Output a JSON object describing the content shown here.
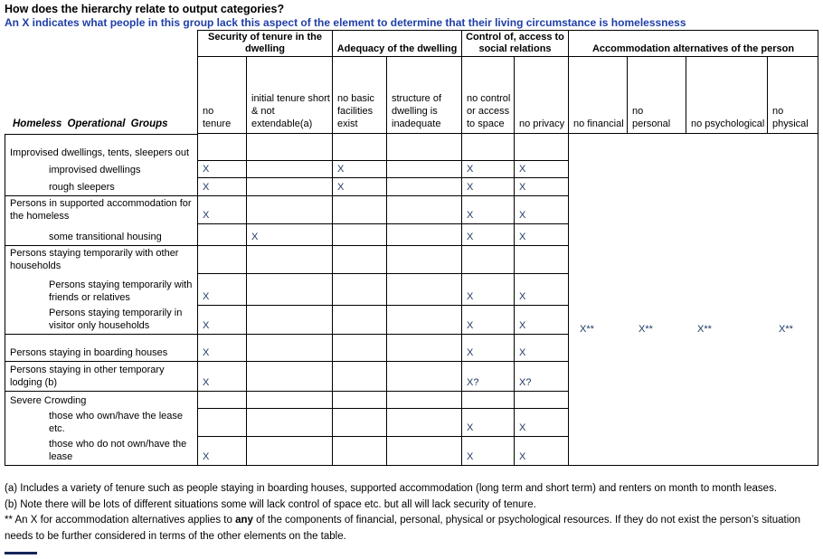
{
  "title": "How does the hierarchy relate to output categories?",
  "subtitle": "An X indicates what people in this group lack this aspect of the element to determine that their living circumstance is homelessness",
  "table": {
    "row_header_title": "Homeless Operational Groups",
    "groups": [
      {
        "label": "Security of tenure in the dwelling"
      },
      {
        "label": "Adequacy of the dwelling"
      },
      {
        "label": "Control of, access to social relations"
      },
      {
        "label": "Accommodation alternatives of the person"
      }
    ],
    "columns": [
      "no tenure",
      "initial tenure short & not extendable(a)",
      "no basic facilities exist",
      "structure of dwelling is inadequate",
      "no control or access to space",
      "no privacy",
      "no financial",
      "no personal",
      "no psychological",
      "no physical"
    ],
    "rows": [
      {
        "label": "Improvised dwellings, tents, sleepers out",
        "indent": false,
        "marks": [
          "",
          "",
          "",
          "",
          "",
          ""
        ],
        "section_end": false
      },
      {
        "label": "improvised dwellings",
        "indent": true,
        "marks": [
          "X",
          "",
          "X",
          "",
          "X",
          "X"
        ],
        "section_end": false
      },
      {
        "label": "rough sleepers",
        "indent": true,
        "marks": [
          "X",
          "",
          "X",
          "",
          "X",
          "X"
        ],
        "section_end": true
      },
      {
        "label": "Persons in supported accommodation for the homeless",
        "indent": false,
        "marks": [
          "X",
          "",
          "",
          "",
          "X",
          "X"
        ],
        "section_end": false
      },
      {
        "label": "some transitional housing",
        "indent": true,
        "marks": [
          "",
          "X",
          "",
          "",
          "X",
          "X"
        ],
        "section_end": true
      },
      {
        "label": "Persons staying temporarily with other households",
        "indent": false,
        "marks": [
          "",
          "",
          "",
          "",
          "",
          ""
        ],
        "section_end": false
      },
      {
        "label": "Persons staying temporarily with friends or relatives",
        "indent": true,
        "marks": [
          "X",
          "",
          "",
          "",
          "X",
          "X"
        ],
        "section_end": false
      },
      {
        "label": "Persons staying temporarily in visitor only households",
        "indent": true,
        "marks": [
          "X",
          "",
          "",
          "",
          "X",
          "X"
        ],
        "accommodation": [
          "X**",
          "X**",
          "X**",
          "X**"
        ],
        "section_end": true
      },
      {
        "label": "Persons staying in boarding houses",
        "indent": false,
        "marks": [
          "X",
          "",
          "",
          "",
          "X",
          "X"
        ],
        "section_end": true
      },
      {
        "label": "Persons staying in other temporary lodging (b)",
        "indent": false,
        "marks": [
          "X",
          "",
          "",
          "",
          "X?",
          "X?"
        ],
        "section_end": true
      },
      {
        "label": "Severe Crowding",
        "indent": false,
        "marks": [
          "",
          "",
          "",
          "",
          "",
          ""
        ],
        "section_end": false
      },
      {
        "label": "those who own/have the lease etc.",
        "indent": true,
        "marks": [
          "",
          "",
          "",
          "",
          "X",
          "X"
        ],
        "section_end": false
      },
      {
        "label": "those who do not own/have the lease",
        "indent": true,
        "marks": [
          "X",
          "",
          "",
          "",
          "X",
          "X"
        ],
        "section_end": true
      }
    ]
  },
  "footnotes": {
    "a": "(a) Includes a variety of tenure such as people staying in boarding houses, supported accommodation (long term and short term) and renters on month to month leases.",
    "b": "(b) Note there will be lots of different situations some will lack control of space etc. but all will lack security of tenure.",
    "star_pre": "** An X for accommodation alternatives applies to ",
    "star_bold": "any",
    "star_post": " of the components of financial, personal, physical or psychological resources. If they do not exist the person’s situation needs to be further considered in terms of the other elements on the table."
  },
  "colors": {
    "subtitle_blue": "#1F3FA8",
    "mark_navy": "#1F3864"
  }
}
